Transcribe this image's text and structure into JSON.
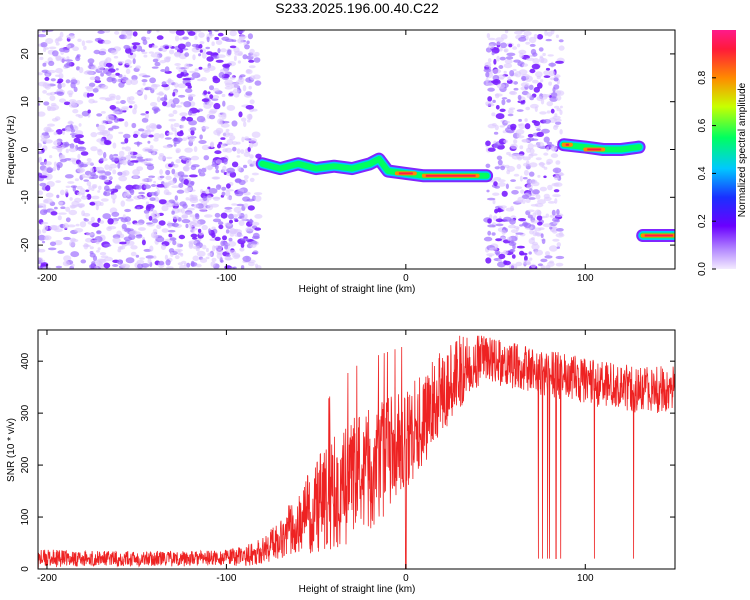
{
  "title": "S233.2025.196.00.40.C22",
  "colors": {
    "snr_line": "#ee2222",
    "spectrum_base": "#7a1fff",
    "spectrum_peak": "#ff1a4a"
  },
  "chart_data": [
    {
      "type": "heatmap",
      "xlabel": "Height of straight line (km)",
      "ylabel": "Frequency (Hz)",
      "xlim": [
        -205,
        150
      ],
      "ylim": [
        -25,
        25
      ],
      "x_ticks": [
        -200,
        -100,
        0,
        100
      ],
      "y_ticks": [
        -20,
        -10,
        0,
        10,
        20
      ],
      "colorbar": {
        "label": "Normalized spectral amplitude",
        "range": [
          0,
          1
        ],
        "ticks": [
          0.0,
          0.2,
          0.4,
          0.6,
          0.8
        ],
        "colormap": [
          "#e8d8ff",
          "#7a1fff",
          "#3a20ff",
          "#00c8ff",
          "#00ff60",
          "#c8ff00",
          "#ff8a00",
          "#ff1a4a"
        ]
      },
      "noise_regions": [
        {
          "x_range": [
            -205,
            -82
          ],
          "f_range": [
            -25,
            25
          ],
          "level": 0.15
        },
        {
          "x_range": [
            45,
            87
          ],
          "f_range": [
            -25,
            25
          ],
          "level": 0.15
        }
      ],
      "signal_track": [
        {
          "x": -80,
          "f": -3
        },
        {
          "x": -70,
          "f": -4
        },
        {
          "x": -60,
          "f": -3
        },
        {
          "x": -50,
          "f": -4
        },
        {
          "x": -40,
          "f": -3.5
        },
        {
          "x": -30,
          "f": -4
        },
        {
          "x": -20,
          "f": -3
        },
        {
          "x": -15,
          "f": -2
        },
        {
          "x": -10,
          "f": -4.5
        },
        {
          "x": 0,
          "f": -5
        },
        {
          "x": 10,
          "f": -5.5
        },
        {
          "x": 20,
          "f": -5.5
        },
        {
          "x": 30,
          "f": -5.5
        },
        {
          "x": 40,
          "f": -5.5
        },
        {
          "x": 45,
          "f": -5.5
        },
        {
          "x": 88,
          "f": 1
        },
        {
          "x": 100,
          "f": 0.5
        },
        {
          "x": 110,
          "f": 0
        },
        {
          "x": 120,
          "f": 0
        },
        {
          "x": 130,
          "f": 0.5
        },
        {
          "x": 132,
          "f": -18
        },
        {
          "x": 150,
          "f": -18
        }
      ]
    },
    {
      "type": "line",
      "xlabel": "Height of straight line (km)",
      "ylabel": "SNR (10 * v/v)",
      "xlim": [
        -205,
        150
      ],
      "ylim": [
        0,
        460
      ],
      "x_ticks": [
        -200,
        -100,
        0,
        100
      ],
      "y_ticks": [
        0,
        100,
        200,
        300,
        400
      ],
      "series": [
        {
          "x": [
            -205,
            -180,
            -160,
            -140,
            -120,
            -100,
            -90,
            -80,
            -70,
            -60,
            -50,
            -40,
            -30,
            -20,
            -10,
            0,
            10,
            20,
            30,
            40,
            50,
            60,
            70,
            80,
            90,
            100,
            110,
            120,
            130,
            140,
            150
          ],
          "values": [
            20,
            20,
            20,
            20,
            20,
            22,
            25,
            35,
            60,
            90,
            120,
            150,
            170,
            190,
            220,
            250,
            290,
            340,
            380,
            400,
            400,
            390,
            385,
            375,
            370,
            360,
            355,
            350,
            345,
            345,
            350
          ],
          "noise": [
            18,
            15,
            15,
            15,
            15,
            15,
            20,
            25,
            40,
            60,
            90,
            110,
            120,
            120,
            110,
            100,
            90,
            80,
            70,
            50,
            45,
            45,
            45,
            45,
            45,
            45,
            45,
            45,
            45,
            45,
            45
          ]
        }
      ]
    }
  ]
}
